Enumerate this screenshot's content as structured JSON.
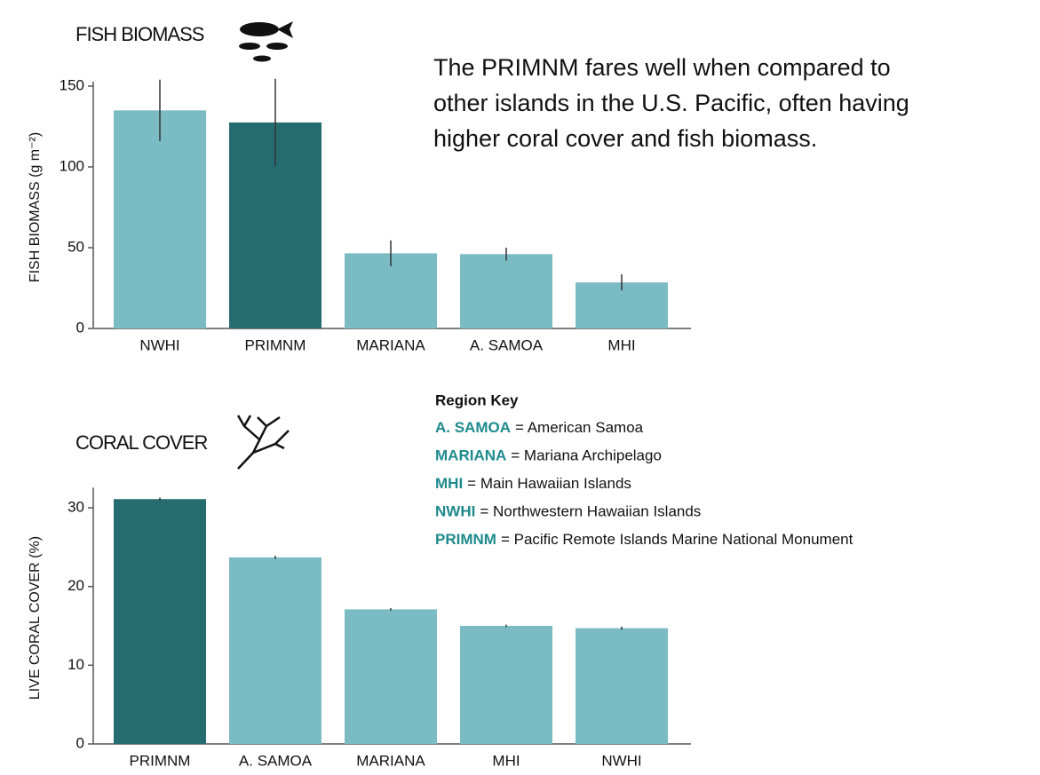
{
  "chart_data": [
    {
      "type": "bar",
      "title": "FISH BIOMASS",
      "y_label": "FISH BIOMASS (g m⁻²)",
      "categories": [
        "NWHI",
        "PRIMNM",
        "MARIANA",
        "A. SAMOA",
        "MHI"
      ],
      "values": [
        135,
        127.5,
        46.5,
        46,
        28.5
      ],
      "errors": [
        19,
        27,
        8,
        4,
        5
      ],
      "colors": [
        "#7bbcc4",
        "#256c70",
        "#7bbcc4",
        "#7bbcc4",
        "#7bbcc4"
      ],
      "ylim": [
        0,
        150
      ],
      "yticks": [
        0,
        50,
        100,
        150
      ]
    },
    {
      "type": "bar",
      "title": "CORAL COVER",
      "y_label": "LIVE CORAL COVER (%)",
      "categories": [
        "PRIMNM",
        "A. SAMOA",
        "MARIANA",
        "MHI",
        "NWHI"
      ],
      "values": [
        31.1,
        23.7,
        17.1,
        15.0,
        14.7
      ],
      "errors": [
        0.2,
        0.2,
        0.15,
        0.15,
        0.2
      ],
      "colors": [
        "#256c70",
        "#7bbcc4",
        "#7bbcc4",
        "#7bbcc4",
        "#7bbcc4"
      ],
      "ylim": [
        0,
        32
      ],
      "yticks": [
        0,
        10,
        20,
        30
      ]
    }
  ],
  "description": [
    "The PRIMNM fares well when compared to",
    "other islands in the U.S. Pacific, often having",
    "higher coral cover and fish biomass."
  ],
  "region_key": {
    "title": "Region Key",
    "entries": [
      {
        "abbr": "A. SAMOA",
        "name": "= American Samoa"
      },
      {
        "abbr": "MARIANA",
        "name": "= Mariana Archipelago"
      },
      {
        "abbr": "MHI",
        "name": "= Main Hawaiian Islands"
      },
      {
        "abbr": "NWHI",
        "name": "= Northwestern Hawaiian Islands"
      },
      {
        "abbr": "PRIMNM",
        "name": "= Pacific Remote Islands Marine National Monument"
      }
    ]
  }
}
